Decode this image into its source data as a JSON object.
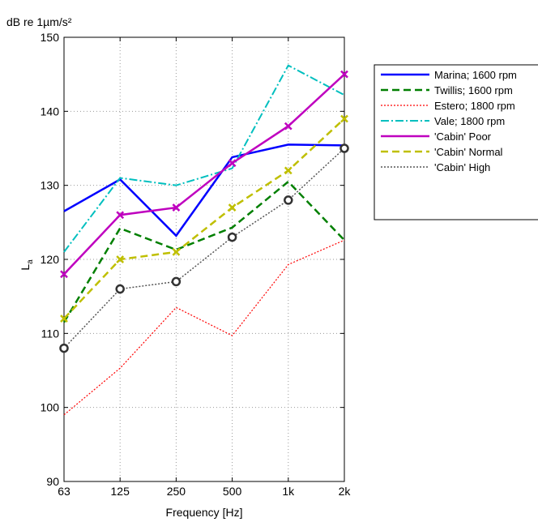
{
  "chart_data": {
    "type": "line",
    "unit_label": "dB re 1µm/s²",
    "ylabel": "L",
    "ylabel_sub": "a",
    "xlabel": "Frequency [Hz]",
    "categories": [
      "63",
      "125",
      "250",
      "500",
      "1k",
      "2k"
    ],
    "ylim": [
      90,
      150
    ],
    "yticks": [
      90,
      100,
      110,
      120,
      130,
      140,
      150
    ],
    "grid": true,
    "legend": "right",
    "series": [
      {
        "name": "Marina; 1600 rpm",
        "values": [
          126.5,
          130.8,
          123.2,
          133.8,
          135.5,
          135.4
        ],
        "color": "#0000ff",
        "dash": "",
        "width": 2.5,
        "marker": ""
      },
      {
        "name": "Twillis; 1600 rpm",
        "values": [
          111.5,
          124.2,
          121.3,
          124.3,
          130.5,
          122.6
        ],
        "color": "#007f00",
        "dash": "9,5",
        "width": 2.5,
        "marker": ""
      },
      {
        "name": "Estero; 1800 rpm",
        "values": [
          99,
          105.3,
          113.5,
          109.7,
          119.3,
          122.6
        ],
        "color": "#ff0000",
        "dash": "2,2",
        "width": 1.2,
        "marker": ""
      },
      {
        "name": "Vale; 1800 rpm",
        "values": [
          121,
          131,
          130,
          132.3,
          146.2,
          142.2
        ],
        "color": "#00bfbf",
        "dash": "10,3,2,3",
        "width": 2,
        "marker": ""
      },
      {
        "name": "'Cabin' Poor",
        "values": [
          118,
          126,
          127,
          133,
          138,
          145
        ],
        "color": "#bf00bf",
        "dash": "",
        "width": 2.5,
        "marker": "x"
      },
      {
        "name": "'Cabin' Normal",
        "values": [
          112,
          120,
          121,
          127,
          132,
          139
        ],
        "color": "#bfbf00",
        "dash": "9,5",
        "width": 2.5,
        "marker": "x"
      },
      {
        "name": "'Cabin' High",
        "values": [
          108,
          116,
          117,
          123,
          128,
          135
        ],
        "color": "#555555",
        "dash": "2,2",
        "width": 1.5,
        "marker": "o"
      }
    ]
  }
}
